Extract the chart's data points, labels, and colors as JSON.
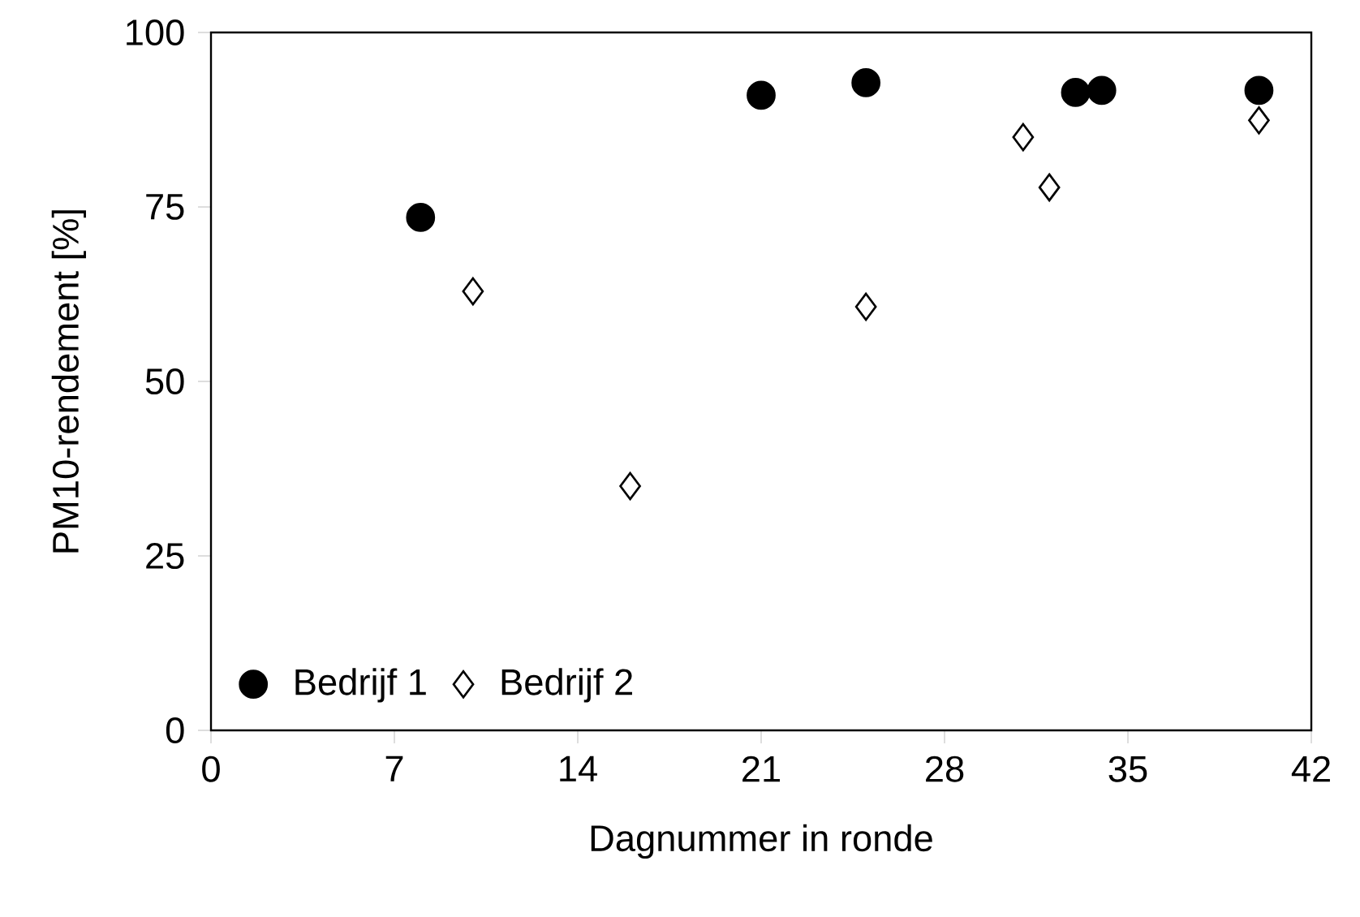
{
  "chart_data": {
    "type": "scatter",
    "xlabel": "Dagnummer in ronde",
    "ylabel": "PM10-rendement [%]",
    "xlim": [
      0,
      42
    ],
    "xticks": [
      0,
      7,
      14,
      21,
      28,
      35,
      42
    ],
    "ylim": [
      0,
      100
    ],
    "yticks": [
      0,
      25,
      50,
      75,
      100
    ],
    "legend": "bottom left",
    "grid": false,
    "series": [
      {
        "name": "Bedrijf 1",
        "color": "#000000",
        "marker": "circle",
        "x": [
          8,
          21,
          25,
          33,
          34,
          40
        ],
        "values": [
          73.5,
          91.0,
          92.8,
          91.4,
          91.7,
          91.7
        ]
      },
      {
        "name": "Bedrijf 2",
        "color": "#000000",
        "marker": "diamond",
        "x": [
          10,
          16,
          25,
          31,
          32,
          40
        ],
        "values": [
          62.9,
          35.0,
          60.7,
          85.0,
          77.8,
          87.4
        ]
      }
    ]
  }
}
